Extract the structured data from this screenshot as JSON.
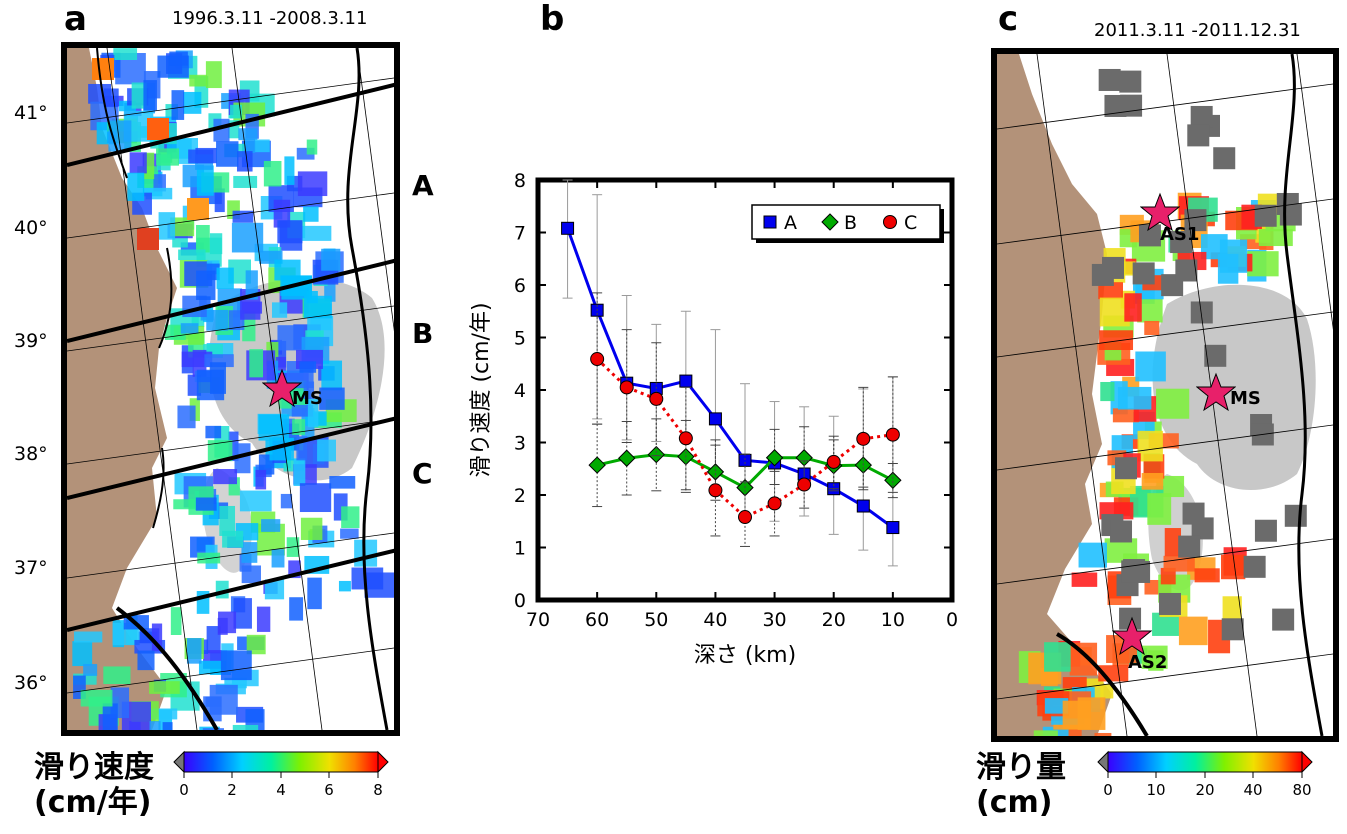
{
  "panel_a": {
    "label": "a",
    "period": "1996.3.11 -2008.3.11",
    "lat_ticks": [
      "41°",
      "40°",
      "39°",
      "38°",
      "37°",
      "36°"
    ],
    "region_labels": [
      "A",
      "B",
      "C"
    ],
    "mainshock_label": "MS",
    "colorbar": {
      "title_line1": "滑り速度",
      "title_line2": "(cm/年)",
      "ticks": [
        "0",
        "2",
        "4",
        "6",
        "8"
      ]
    }
  },
  "panel_b": {
    "label": "b"
  },
  "panel_c": {
    "label": "c",
    "period": "2011.3.11 -2011.12.31",
    "event_labels": [
      "AS1",
      "MS",
      "AS2"
    ],
    "colorbar": {
      "title_line1": "滑り量",
      "title_line2": "(cm)",
      "ticks": [
        "0",
        "10",
        "20",
        "40",
        "80"
      ]
    }
  },
  "colors": {
    "land": "#b39279",
    "ms_region": "#c8c8c8",
    "star": "#e8206a",
    "A": "#0000ee",
    "B": "#00aa00",
    "C": "#ee0000",
    "grey_cells": "#6b6b6b"
  },
  "chart_data": {
    "type": "line",
    "xlabel": "深さ (km)",
    "ylabel": "滑り速度 (cm/年)",
    "xlim": [
      70,
      0
    ],
    "ylim": [
      0,
      8
    ],
    "x_ticks": [
      70,
      60,
      50,
      40,
      30,
      20,
      10,
      0
    ],
    "y_ticks": [
      0,
      1,
      2,
      3,
      4,
      5,
      6,
      7,
      8
    ],
    "legend_position": "top-right",
    "series": [
      {
        "name": "A",
        "marker": "square",
        "line": "solid",
        "color": "#0000ee",
        "x": [
          65,
          60,
          55,
          50,
          45,
          40,
          35,
          30,
          25,
          20,
          15,
          10
        ],
        "y": [
          7.08,
          5.52,
          4.13,
          4.03,
          4.17,
          3.45,
          2.66,
          2.61,
          2.4,
          2.12,
          1.79,
          1.38
        ],
        "err_low": [
          5.75,
          3.45,
          3.05,
          3.02,
          3.15,
          2.42,
          1.6,
          1.5,
          1.6,
          1.25,
          0.95,
          0.65
        ],
        "err_high": [
          8.0,
          7.72,
          5.8,
          5.25,
          5.5,
          5.15,
          4.12,
          3.78,
          3.68,
          3.5,
          4.02,
          4.25
        ]
      },
      {
        "name": "B",
        "marker": "diamond",
        "line": "solid",
        "color": "#00aa00",
        "x": [
          60,
          55,
          50,
          45,
          40,
          35,
          30,
          25,
          20,
          15,
          10
        ],
        "y": [
          2.57,
          2.7,
          2.77,
          2.73,
          2.44,
          2.14,
          2.71,
          2.71,
          2.56,
          2.57,
          2.28
        ],
        "err_low": [
          1.78,
          2.0,
          2.08,
          2.05,
          1.9,
          1.5,
          2.2,
          2.12,
          2.08,
          2.15,
          1.95
        ],
        "err_high": [
          3.35,
          3.4,
          3.45,
          3.42,
          3.05,
          2.78,
          3.25,
          3.3,
          3.05,
          3.0,
          2.6
        ]
      },
      {
        "name": "C",
        "marker": "circle",
        "line": "dotted",
        "color": "#ee0000",
        "x": [
          60,
          55,
          50,
          45,
          40,
          35,
          30,
          25,
          20,
          15,
          10
        ],
        "y": [
          4.59,
          4.05,
          3.83,
          3.08,
          2.09,
          1.58,
          1.84,
          2.2,
          2.63,
          3.07,
          3.15
        ],
        "err_low": [
          3.35,
          3.0,
          2.75,
          2.1,
          1.22,
          1.02,
          1.22,
          1.75,
          2.12,
          2.1,
          2.05
        ],
        "err_high": [
          5.85,
          5.15,
          4.9,
          4.05,
          2.95,
          2.25,
          2.45,
          2.65,
          3.12,
          4.05,
          4.25
        ]
      }
    ]
  }
}
